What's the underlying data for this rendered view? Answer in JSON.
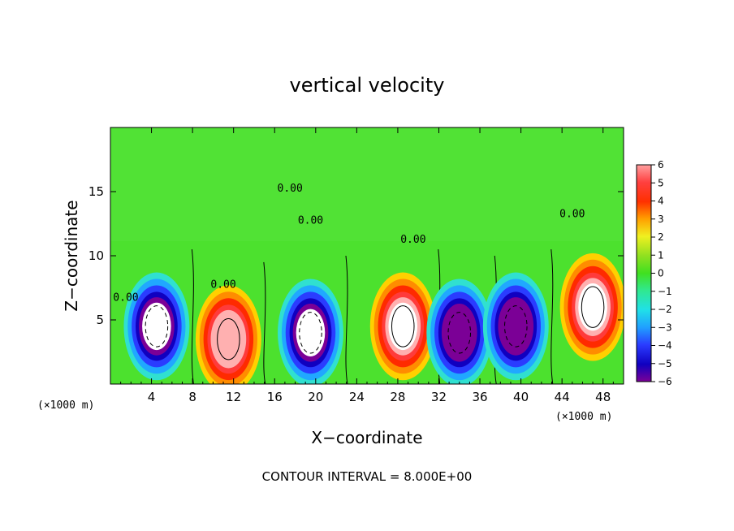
{
  "chart_data": {
    "type": "heatmap",
    "title": "vertical velocity",
    "xlabel": "X−coordinate",
    "ylabel": "Z−coordinate",
    "x_unit_left": "(×1000 m)",
    "x_unit_right": "(×1000 m)",
    "xlim": [
      0,
      50
    ],
    "ylim": [
      0,
      20
    ],
    "xticks": [
      4,
      8,
      12,
      16,
      20,
      24,
      28,
      32,
      36,
      40,
      44,
      48
    ],
    "xtick_labels": [
      "4",
      "8",
      "12",
      "16",
      "20",
      "24",
      "28",
      "32",
      "36",
      "40",
      "44",
      "48"
    ],
    "yticks": [
      5,
      10,
      15
    ],
    "ytick_labels": [
      "5",
      "10",
      "15"
    ],
    "colorbar": {
      "min": -6,
      "max": 6,
      "ticks": [
        6,
        5,
        4,
        3,
        2,
        1,
        0,
        -1,
        -2,
        -3,
        -4,
        -5,
        -6
      ],
      "tick_labels": [
        "6",
        "5",
        "4",
        "3",
        "2",
        "1",
        "0",
        "−1",
        "−2",
        "−3",
        "−4",
        "−5",
        "−6"
      ]
    },
    "contour_label": "0.00",
    "contour_interval_text": "CONTOUR INTERVAL = 8.000E+00",
    "cells": [
      {
        "x": 4.5,
        "z": 4.5,
        "w": -8
      },
      {
        "x": 11.5,
        "z": 3.5,
        "w": 7
      },
      {
        "x": 19.5,
        "z": 4.0,
        "w": -8
      },
      {
        "x": 28.5,
        "z": 4.5,
        "w": 8
      },
      {
        "x": 34.0,
        "z": 4.0,
        "w": -7
      },
      {
        "x": 39.5,
        "z": 4.5,
        "w": -7
      },
      {
        "x": 47.0,
        "z": 6.0,
        "w": 8
      }
    ]
  }
}
